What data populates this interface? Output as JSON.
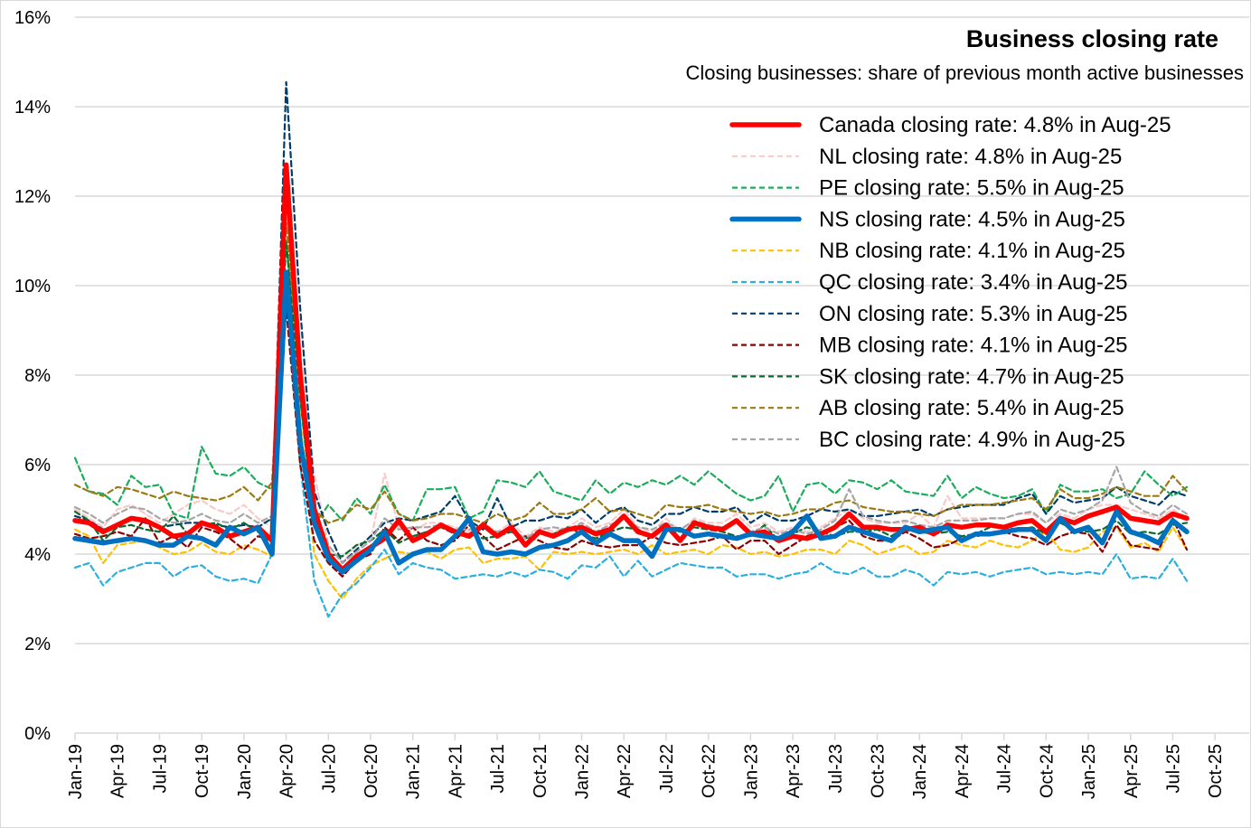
{
  "chart_data": {
    "type": "line",
    "title": "Business closing rate",
    "subtitle": "Closing businesses: share of previous month active businesses",
    "xlabel": "",
    "ylabel": "",
    "ylim": [
      0,
      16
    ],
    "y_ticks": [
      "0%",
      "2%",
      "4%",
      "6%",
      "8%",
      "10%",
      "12%",
      "14%",
      "16%"
    ],
    "y_tick_values": [
      0,
      2,
      4,
      6,
      8,
      10,
      12,
      14,
      16
    ],
    "x_start": "Jan-19",
    "x_tick_labels": [
      "Jan-19",
      "Apr-19",
      "Jul-19",
      "Oct-19",
      "Jan-20",
      "Apr-20",
      "Jul-20",
      "Oct-20",
      "Jan-21",
      "Apr-21",
      "Jul-21",
      "Oct-21",
      "Jan-22",
      "Apr-22",
      "Jul-22",
      "Oct-22",
      "Jan-23",
      "Apr-23",
      "Jul-23",
      "Oct-23",
      "Jan-24",
      "Apr-24",
      "Jul-24",
      "Oct-24",
      "Jan-25",
      "Apr-25",
      "Jul-25",
      "Oct-25"
    ],
    "grid": true,
    "legend_position": "top-right",
    "series": [
      {
        "name": "Canada",
        "label": "Canada closing rate: 4.8% in Aug-25",
        "color": "#ff0000",
        "style": "solid-thick",
        "values": [
          4.75,
          4.7,
          4.5,
          4.65,
          4.8,
          4.75,
          4.6,
          4.4,
          4.45,
          4.7,
          4.6,
          4.4,
          4.5,
          4.6,
          4.3,
          12.7,
          8.0,
          5.0,
          4.0,
          3.65,
          3.95,
          4.15,
          4.35,
          4.75,
          4.3,
          4.45,
          4.65,
          4.5,
          4.4,
          4.65,
          4.4,
          4.6,
          4.2,
          4.5,
          4.4,
          4.55,
          4.6,
          4.45,
          4.55,
          4.85,
          4.5,
          4.4,
          4.65,
          4.3,
          4.7,
          4.6,
          4.55,
          4.75,
          4.45,
          4.5,
          4.3,
          4.4,
          4.35,
          4.45,
          4.6,
          4.9,
          4.6,
          4.6,
          4.55,
          4.55,
          4.6,
          4.45,
          4.65,
          4.6,
          4.65,
          4.65,
          4.6,
          4.7,
          4.75,
          4.5,
          4.8,
          4.7,
          4.85,
          4.95,
          5.05,
          4.8,
          4.75,
          4.7,
          4.9,
          4.8
        ]
      },
      {
        "name": "NL",
        "label": "NL closing rate: 4.8% in Aug-25",
        "color": "#f8cbcb",
        "style": "dashed",
        "values": [
          5.0,
          4.8,
          4.6,
          5.0,
          5.1,
          4.9,
          4.7,
          4.9,
          5.1,
          5.2,
          5.0,
          4.9,
          5.1,
          4.8,
          4.6,
          11.8,
          8.5,
          5.8,
          4.2,
          3.8,
          4.2,
          4.3,
          5.8,
          4.6,
          4.5,
          4.7,
          4.7,
          4.6,
          4.5,
          4.7,
          4.5,
          4.7,
          4.4,
          4.6,
          4.5,
          4.6,
          4.8,
          4.6,
          4.7,
          5.0,
          4.6,
          4.5,
          4.8,
          4.5,
          4.8,
          4.7,
          4.7,
          4.9,
          4.6,
          4.7,
          4.5,
          4.6,
          4.5,
          4.6,
          4.8,
          5.0,
          4.8,
          4.7,
          4.7,
          4.7,
          4.9,
          4.6,
          5.3,
          4.8,
          4.8,
          4.8,
          4.8,
          4.9,
          4.9,
          4.7,
          4.9,
          4.8,
          5.0,
          5.1,
          5.1,
          5.0,
          4.9,
          4.8,
          5.0,
          4.8
        ]
      },
      {
        "name": "PE",
        "label": "PE closing rate: 5.5% in Aug-25",
        "color": "#1aad5a",
        "style": "dashed",
        "values": [
          6.15,
          5.4,
          5.35,
          5.1,
          5.75,
          5.5,
          5.55,
          4.9,
          4.8,
          6.4,
          5.8,
          5.75,
          5.95,
          5.6,
          5.45,
          11.0,
          7.5,
          4.65,
          5.1,
          4.75,
          5.25,
          4.9,
          5.55,
          4.9,
          4.75,
          5.45,
          5.45,
          5.5,
          4.8,
          4.95,
          5.65,
          5.6,
          5.5,
          5.85,
          5.4,
          5.3,
          5.2,
          5.65,
          5.35,
          5.6,
          5.5,
          5.65,
          5.55,
          5.75,
          5.55,
          5.85,
          5.6,
          5.35,
          5.2,
          5.3,
          5.75,
          4.95,
          5.55,
          5.6,
          5.35,
          5.65,
          5.6,
          5.45,
          5.65,
          5.4,
          5.35,
          5.3,
          5.75,
          5.25,
          5.5,
          5.35,
          5.25,
          5.3,
          5.45,
          4.9,
          5.55,
          5.4,
          5.4,
          5.45,
          5.25,
          5.35,
          5.85,
          5.55,
          5.3,
          5.5
        ]
      },
      {
        "name": "NS",
        "label": "NS closing rate: 4.5% in Aug-25",
        "color": "#0070c0",
        "style": "solid-thick",
        "values": [
          4.35,
          4.3,
          4.25,
          4.3,
          4.35,
          4.3,
          4.2,
          4.2,
          4.4,
          4.35,
          4.2,
          4.6,
          4.45,
          4.6,
          4.0,
          10.3,
          6.5,
          4.7,
          3.9,
          3.6,
          3.85,
          4.1,
          4.5,
          3.8,
          4.0,
          4.1,
          4.1,
          4.4,
          4.8,
          4.05,
          4.0,
          4.05,
          4.0,
          4.15,
          4.2,
          4.3,
          4.5,
          4.25,
          4.45,
          4.3,
          4.3,
          3.95,
          4.55,
          4.55,
          4.4,
          4.45,
          4.4,
          4.35,
          4.45,
          4.4,
          4.35,
          4.5,
          4.85,
          4.35,
          4.4,
          4.6,
          4.5,
          4.4,
          4.3,
          4.6,
          4.5,
          4.55,
          4.6,
          4.3,
          4.45,
          4.45,
          4.5,
          4.55,
          4.55,
          4.3,
          4.8,
          4.5,
          4.6,
          4.25,
          4.95,
          4.5,
          4.4,
          4.25,
          4.75,
          4.5
        ]
      },
      {
        "name": "NB",
        "label": "NB closing rate: 4.1% in Aug-25",
        "color": "#ffc000",
        "style": "dashed",
        "values": [
          4.55,
          4.4,
          3.8,
          4.2,
          4.25,
          4.3,
          4.15,
          4.0,
          4.05,
          4.25,
          4.05,
          4.0,
          4.2,
          4.1,
          3.95,
          12.2,
          7.0,
          4.0,
          3.4,
          3.0,
          3.45,
          3.75,
          3.9,
          4.05,
          4.0,
          4.05,
          3.9,
          4.1,
          4.15,
          3.8,
          3.9,
          3.9,
          3.95,
          3.65,
          4.05,
          4.0,
          4.05,
          4.0,
          4.05,
          4.1,
          4.0,
          4.2,
          4.0,
          4.05,
          4.1,
          4.0,
          4.2,
          4.15,
          4.0,
          4.05,
          3.95,
          4.0,
          4.1,
          4.1,
          4.0,
          4.3,
          4.2,
          4.0,
          4.1,
          4.2,
          4.0,
          4.05,
          4.3,
          4.2,
          4.15,
          4.3,
          4.2,
          4.15,
          4.3,
          4.5,
          4.1,
          4.05,
          4.15,
          4.5,
          4.6,
          4.15,
          4.25,
          4.05,
          4.6,
          4.1
        ]
      },
      {
        "name": "QC",
        "label": "QC closing rate: 3.4% in Aug-25",
        "color": "#29b0e0",
        "style": "dashed",
        "values": [
          3.7,
          3.8,
          3.3,
          3.6,
          3.7,
          3.8,
          3.8,
          3.5,
          3.7,
          3.75,
          3.5,
          3.4,
          3.45,
          3.35,
          4.0,
          10.0,
          6.0,
          3.4,
          2.6,
          3.1,
          3.35,
          3.7,
          4.1,
          3.55,
          3.8,
          3.7,
          3.65,
          3.45,
          3.5,
          3.55,
          3.5,
          3.6,
          3.5,
          3.65,
          3.6,
          3.45,
          3.75,
          3.7,
          3.95,
          3.5,
          3.85,
          3.5,
          3.65,
          3.8,
          3.75,
          3.7,
          3.7,
          3.5,
          3.55,
          3.55,
          3.45,
          3.55,
          3.6,
          3.8,
          3.6,
          3.55,
          3.7,
          3.5,
          3.5,
          3.65,
          3.55,
          3.3,
          3.6,
          3.55,
          3.6,
          3.5,
          3.6,
          3.65,
          3.7,
          3.55,
          3.6,
          3.55,
          3.6,
          3.55,
          4.0,
          3.45,
          3.5,
          3.45,
          3.9,
          3.4
        ]
      },
      {
        "name": "ON",
        "label": "ON closing rate: 5.3% in Aug-25",
        "color": "#003d6b",
        "style": "dashed",
        "values": [
          4.85,
          4.75,
          4.55,
          4.65,
          4.8,
          4.7,
          4.6,
          4.65,
          4.7,
          4.7,
          4.65,
          4.6,
          4.65,
          4.6,
          4.8,
          14.55,
          9.5,
          5.4,
          4.5,
          3.8,
          4.1,
          4.4,
          4.7,
          4.8,
          4.75,
          4.85,
          4.95,
          5.3,
          4.75,
          4.55,
          5.25,
          4.6,
          4.75,
          4.75,
          4.85,
          4.8,
          5.0,
          4.7,
          4.95,
          5.05,
          4.75,
          4.65,
          4.9,
          4.9,
          5.05,
          4.95,
          4.95,
          5.05,
          4.7,
          4.9,
          4.75,
          4.75,
          4.85,
          5.0,
          4.95,
          5.0,
          4.85,
          4.85,
          4.9,
          4.95,
          5.0,
          4.85,
          5.0,
          5.05,
          5.1,
          5.1,
          5.1,
          5.25,
          5.35,
          4.9,
          5.3,
          5.15,
          5.2,
          5.25,
          5.5,
          5.3,
          5.2,
          5.1,
          5.4,
          5.3
        ]
      },
      {
        "name": "MB",
        "label": "MB closing rate: 4.1% in Aug-25",
        "color": "#8b0000",
        "style": "dashed",
        "values": [
          4.45,
          4.35,
          4.4,
          4.5,
          4.4,
          4.8,
          4.25,
          4.4,
          4.15,
          4.6,
          4.5,
          4.35,
          4.1,
          4.4,
          4.3,
          9.5,
          6.0,
          4.3,
          3.8,
          3.5,
          3.85,
          4.0,
          4.6,
          4.3,
          4.6,
          4.3,
          4.2,
          4.3,
          4.65,
          4.4,
          4.1,
          4.25,
          4.4,
          4.3,
          4.15,
          4.1,
          4.3,
          4.2,
          4.15,
          4.2,
          4.2,
          4.4,
          4.25,
          4.2,
          4.25,
          4.3,
          4.4,
          4.1,
          4.3,
          4.3,
          4.0,
          4.2,
          4.4,
          4.5,
          4.6,
          4.75,
          4.4,
          4.3,
          4.3,
          4.5,
          4.35,
          4.15,
          4.2,
          4.35,
          4.4,
          4.45,
          4.5,
          4.4,
          4.35,
          4.2,
          4.4,
          4.5,
          4.45,
          4.05,
          4.65,
          4.2,
          4.15,
          4.1,
          4.8,
          4.1
        ]
      },
      {
        "name": "SK",
        "label": "SK closing rate: 4.7% in Aug-25",
        "color": "#0b6b2e",
        "style": "dashed",
        "values": [
          4.95,
          4.75,
          4.3,
          4.6,
          4.65,
          4.55,
          4.5,
          4.85,
          4.45,
          4.65,
          4.7,
          4.55,
          4.7,
          4.5,
          4.35,
          11.0,
          7.5,
          4.6,
          4.0,
          3.95,
          4.2,
          4.3,
          4.55,
          4.25,
          4.4,
          4.5,
          4.6,
          4.45,
          4.45,
          4.35,
          4.4,
          4.5,
          4.35,
          4.45,
          4.45,
          4.6,
          4.45,
          4.35,
          4.5,
          4.6,
          4.55,
          4.4,
          4.6,
          4.5,
          4.6,
          4.55,
          4.5,
          4.4,
          4.4,
          4.65,
          4.3,
          4.45,
          4.6,
          4.5,
          4.4,
          4.5,
          4.5,
          4.55,
          4.4,
          4.6,
          4.5,
          4.45,
          4.5,
          4.4,
          4.45,
          4.6,
          4.6,
          4.55,
          4.6,
          4.45,
          4.7,
          4.55,
          4.5,
          4.55,
          4.75,
          4.45,
          4.5,
          4.45,
          4.65,
          4.7
        ]
      },
      {
        "name": "AB",
        "label": "AB closing rate: 5.4% in Aug-25",
        "color": "#9c7a12",
        "style": "dashed",
        "values": [
          5.55,
          5.4,
          5.3,
          5.5,
          5.45,
          5.35,
          5.25,
          5.4,
          5.3,
          5.25,
          5.2,
          5.3,
          5.5,
          5.2,
          5.6,
          11.4,
          8.0,
          5.0,
          4.7,
          4.8,
          5.1,
          5.0,
          5.4,
          4.9,
          4.75,
          4.8,
          4.9,
          4.9,
          4.8,
          4.7,
          4.9,
          4.75,
          4.85,
          5.15,
          4.9,
          4.9,
          5.0,
          5.25,
          4.95,
          5.0,
          4.9,
          4.8,
          5.1,
          5.05,
          5.05,
          5.1,
          5.0,
          4.95,
          4.9,
          4.95,
          4.85,
          4.9,
          5.0,
          5.0,
          5.15,
          5.2,
          5.05,
          5.0,
          4.95,
          4.95,
          4.9,
          4.85,
          5.0,
          5.1,
          5.1,
          5.1,
          5.15,
          5.2,
          5.25,
          5.0,
          5.45,
          5.25,
          5.25,
          5.35,
          5.5,
          5.4,
          5.3,
          5.3,
          5.75,
          5.4
        ]
      },
      {
        "name": "BC",
        "label": "BC closing rate: 4.9% in Aug-25",
        "color": "#a6a6a6",
        "style": "dashed",
        "values": [
          5.05,
          4.9,
          4.7,
          4.9,
          5.05,
          5.0,
          4.8,
          4.7,
          4.75,
          4.9,
          4.75,
          4.7,
          4.9,
          4.7,
          4.85,
          12.0,
          8.0,
          5.0,
          4.2,
          3.8,
          4.05,
          4.3,
          4.8,
          4.55,
          4.6,
          4.6,
          4.65,
          4.55,
          4.55,
          4.6,
          4.5,
          4.55,
          4.35,
          4.55,
          4.6,
          4.55,
          4.7,
          4.5,
          4.65,
          4.8,
          4.6,
          4.55,
          4.7,
          4.55,
          4.75,
          4.65,
          4.6,
          4.75,
          4.5,
          4.6,
          4.45,
          4.55,
          4.45,
          4.55,
          4.75,
          5.45,
          4.85,
          4.75,
          4.7,
          4.75,
          4.65,
          4.6,
          4.75,
          4.75,
          4.75,
          4.8,
          4.8,
          4.9,
          4.95,
          4.7,
          5.0,
          4.9,
          5.0,
          5.2,
          5.95,
          5.15,
          4.95,
          4.85,
          5.1,
          4.9
        ]
      }
    ]
  }
}
